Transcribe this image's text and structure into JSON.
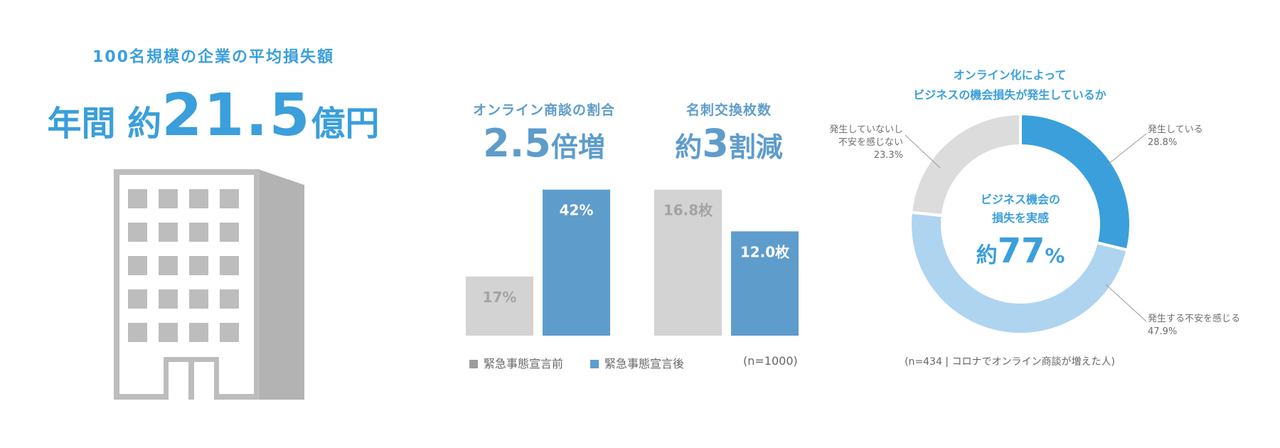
{
  "left": {
    "subtitle": "100名規模の企業の平均損失額",
    "prefix": "年間 約",
    "value": "21.5",
    "unit": "億円"
  },
  "online": {
    "title": "オンライン商談の割合",
    "value": "2.5",
    "unit": "倍増"
  },
  "cards": {
    "title": "名刺交換枚数",
    "prefix": "約",
    "value": "3",
    "unit": "割減"
  },
  "legend": {
    "before": "緊急事態宣言前",
    "after": "緊急事態宣言後",
    "n": "(n=1000)"
  },
  "donut": {
    "title_line1": "オンライン化によって",
    "title_line2": "ビジネスの機会損失が発生しているか",
    "center_line1": "ビジネス機会の",
    "center_line2": "損失を実感",
    "center_prefix": "約",
    "center_value": "77",
    "center_unit": "%",
    "note": "(n=434 | コロナでオンライン商談が増えた人)"
  },
  "colors": {
    "blue": "#3a9fdb",
    "steel": "#5e9ccc",
    "grey_bar": "#d3d3d3",
    "light_blue": "#aed4f0",
    "light_grey": "#dcdcdc"
  },
  "chart_data": [
    {
      "type": "bar",
      "title": "オンライン商談の割合",
      "categories": [
        "緊急事態宣言前",
        "緊急事態宣言後"
      ],
      "values": [
        17,
        42
      ],
      "value_labels": [
        "17%",
        "42%"
      ],
      "ylim": [
        0,
        45
      ]
    },
    {
      "type": "bar",
      "title": "名刺交換枚数",
      "categories": [
        "緊急事態宣言前",
        "緊急事態宣言後"
      ],
      "values": [
        16.8,
        12.0
      ],
      "value_labels": [
        "16.8枚",
        "12.0枚"
      ],
      "ylim": [
        0,
        18
      ]
    },
    {
      "type": "pie",
      "title": "オンライン化によって ビジネスの機会損失が発生しているか",
      "slices": [
        {
          "label_line1": "発生している",
          "label_line2": "",
          "value": 28.8,
          "value_label": "28.8%"
        },
        {
          "label_line1": "発生する不安を感じる",
          "label_line2": "",
          "value": 47.9,
          "value_label": "47.9%"
        },
        {
          "label_line1": "発生していないし",
          "label_line2": "不安を感じない",
          "value": 23.3,
          "value_label": "23.3%"
        }
      ]
    }
  ]
}
